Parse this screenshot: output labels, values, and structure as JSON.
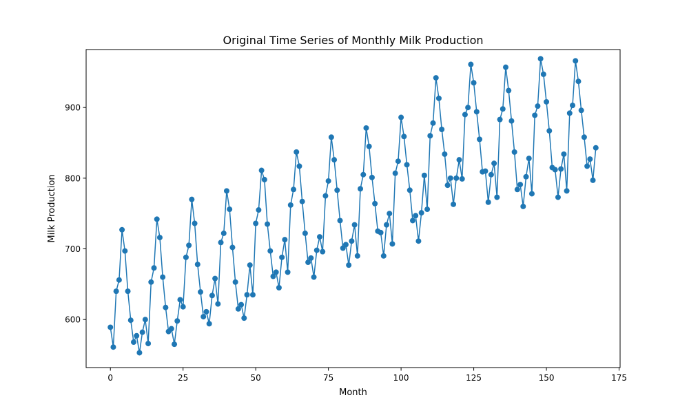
{
  "chart_data": {
    "type": "line",
    "title": "Original Time Series of Monthly Milk Production",
    "xlabel": "Month",
    "ylabel": "Milk Production",
    "xlim": [
      -8.35,
      175.35
    ],
    "ylim": [
      532,
      982
    ],
    "xticks": [
      0,
      25,
      50,
      75,
      100,
      125,
      150,
      175
    ],
    "yticks": [
      600,
      700,
      800,
      900
    ],
    "grid": false,
    "marker": "circle",
    "series_color": "#1f77b4",
    "series": [
      {
        "x": [
          0,
          1,
          2,
          3,
          4,
          5,
          6,
          7,
          8,
          9,
          10,
          11,
          12,
          13,
          14,
          15,
          16,
          17,
          18,
          19,
          20,
          21,
          22,
          23,
          24,
          25,
          26,
          27,
          28,
          29,
          30,
          31,
          32,
          33,
          34,
          35,
          36,
          37,
          38,
          39,
          40,
          41,
          42,
          43,
          44,
          45,
          46,
          47,
          48,
          49,
          50,
          51,
          52,
          53,
          54,
          55,
          56,
          57,
          58,
          59,
          60,
          61,
          62,
          63,
          64,
          65,
          66,
          67,
          68,
          69,
          70,
          71,
          72,
          73,
          74,
          75,
          76,
          77,
          78,
          79,
          80,
          81,
          82,
          83,
          84,
          85,
          86,
          87,
          88,
          89,
          90,
          91,
          92,
          93,
          94,
          95,
          96,
          97,
          98,
          99,
          100,
          101,
          102,
          103,
          104,
          105,
          106,
          107,
          108,
          109,
          110,
          111,
          112,
          113,
          114,
          115,
          116,
          117,
          118,
          119,
          120,
          121,
          122,
          123,
          124,
          125,
          126,
          127,
          128,
          129,
          130,
          131,
          132,
          133,
          134,
          135,
          136,
          137,
          138,
          139,
          140,
          141,
          142,
          143,
          144,
          145,
          146,
          147,
          148,
          149,
          150,
          151,
          152,
          153,
          154,
          155,
          156,
          157,
          158,
          159,
          160,
          161,
          162,
          163,
          164,
          165,
          166,
          167
        ],
        "values": [
          589,
          561,
          640,
          656,
          727,
          697,
          640,
          599,
          568,
          577,
          553,
          582,
          600,
          566,
          653,
          673,
          742,
          716,
          660,
          617,
          583,
          587,
          565,
          598,
          628,
          618,
          688,
          705,
          770,
          736,
          678,
          639,
          604,
          611,
          594,
          634,
          658,
          622,
          709,
          722,
          782,
          756,
          702,
          653,
          615,
          621,
          602,
          635,
          677,
          635,
          736,
          755,
          811,
          798,
          735,
          697,
          661,
          667,
          645,
          688,
          713,
          667,
          762,
          784,
          837,
          817,
          767,
          722,
          681,
          687,
          660,
          698,
          717,
          696,
          775,
          796,
          858,
          826,
          783,
          740,
          701,
          706,
          677,
          711,
          734,
          690,
          785,
          805,
          871,
          845,
          801,
          764,
          725,
          723,
          690,
          734,
          750,
          707,
          807,
          824,
          886,
          859,
          819,
          783,
          740,
          747,
          711,
          751,
          804,
          756,
          860,
          878,
          942,
          913,
          869,
          834,
          790,
          800,
          763,
          800,
          826,
          799,
          890,
          900,
          961,
          935,
          894,
          855,
          809,
          810,
          766,
          805,
          821,
          773,
          883,
          898,
          957,
          924,
          881,
          837,
          784,
          791,
          760,
          802,
          828,
          778,
          889,
          902,
          969,
          947,
          908,
          867,
          815,
          812,
          773,
          813,
          834,
          782,
          892,
          903,
          966,
          937,
          896,
          858,
          817,
          827,
          797,
          843
        ]
      }
    ]
  }
}
